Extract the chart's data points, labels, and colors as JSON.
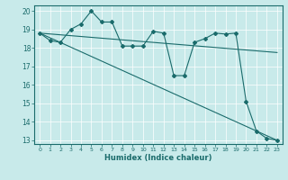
{
  "bg_color": "#c8eaea",
  "grid_color": "#ffffff",
  "line_color": "#1a6b6b",
  "xlabel": "Humidex (Indice chaleur)",
  "xlim": [
    -0.5,
    23.5
  ],
  "ylim": [
    12.8,
    20.3
  ],
  "xticks": [
    0,
    1,
    2,
    3,
    4,
    5,
    6,
    7,
    8,
    9,
    10,
    11,
    12,
    13,
    14,
    15,
    16,
    17,
    18,
    19,
    20,
    21,
    22,
    23
  ],
  "yticks": [
    13,
    14,
    15,
    16,
    17,
    18,
    19,
    20
  ],
  "main_x": [
    0,
    1,
    2,
    3,
    4,
    5,
    6,
    7,
    8,
    9,
    10,
    11,
    12,
    13,
    14,
    15,
    16,
    17,
    18,
    19,
    20,
    21,
    22,
    23
  ],
  "main_y": [
    18.8,
    18.4,
    18.3,
    19.0,
    19.3,
    20.0,
    19.4,
    19.4,
    18.1,
    18.1,
    18.1,
    18.9,
    18.8,
    16.5,
    16.5,
    18.3,
    18.5,
    18.8,
    18.75,
    18.8,
    15.1,
    13.5,
    13.1,
    13.0
  ],
  "trend1_x": [
    0,
    23
  ],
  "trend1_y": [
    18.8,
    13.0
  ],
  "trend2_x": [
    0,
    23
  ],
  "trend2_y": [
    18.8,
    17.75
  ]
}
